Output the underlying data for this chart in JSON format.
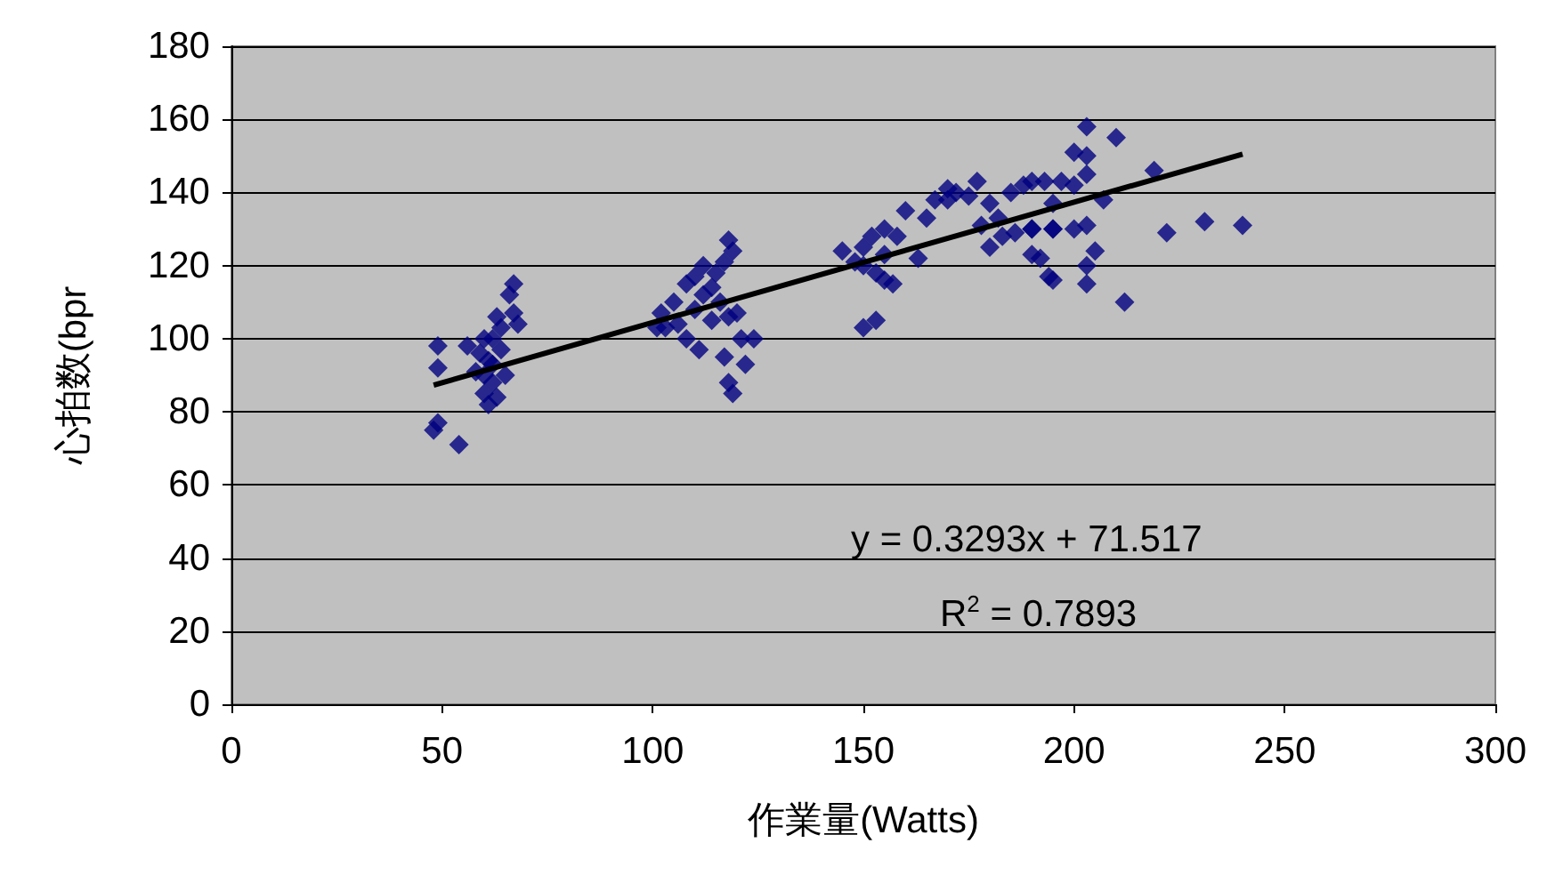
{
  "chart_data": {
    "type": "scatter",
    "xlabel": "作業量(Watts)",
    "ylabel": "心拍数(bpr",
    "xlim": [
      0,
      300
    ],
    "ylim": [
      0,
      180
    ],
    "xticks": [
      0,
      50,
      100,
      150,
      200,
      250,
      300
    ],
    "yticks": [
      0,
      20,
      40,
      60,
      80,
      100,
      120,
      140,
      160,
      180
    ],
    "grid": "y",
    "marker": "diamond",
    "annotations": [
      "y = 0.3293x + 71.517",
      "R$^{2}$ = 0.7893"
    ],
    "series": [
      {
        "color": "#000080",
        "x": [
          48,
          49,
          54,
          49,
          49,
          56,
          59,
          60,
          60,
          61,
          62,
          62,
          62,
          63,
          64,
          64,
          65,
          63,
          61,
          66,
          67,
          67,
          68,
          60,
          58,
          118,
          119,
          117,
          112,
          110,
          115,
          108,
          105,
          102,
          101,
          103,
          110,
          112,
          114,
          116,
          118,
          120,
          121,
          124,
          117,
          122,
          118,
          119,
          111,
          108,
          114,
          106,
          150,
          153,
          148,
          150,
          152,
          153,
          155,
          157,
          155,
          160,
          163,
          165,
          167,
          170,
          172,
          175,
          177,
          180,
          178,
          183,
          185,
          186,
          188,
          190,
          192,
          195,
          195,
          197,
          180,
          170,
          158,
          150,
          155,
          145,
          182,
          203,
          210,
          200,
          203,
          203,
          219,
          190,
          193,
          200,
          195,
          207,
          190,
          195,
          200,
          203,
          222,
          231,
          240,
          190,
          205,
          203,
          194,
          203,
          212
        ],
        "values": [
          75,
          77,
          71,
          92,
          98,
          98,
          96,
          90,
          85,
          82,
          88,
          93,
          100,
          106,
          103,
          97,
          90,
          84,
          94,
          112,
          115,
          107,
          104,
          100,
          91,
          127,
          124,
          121,
          120,
          117,
          118,
          115,
          110,
          107,
          103,
          103,
          108,
          112,
          114,
          110,
          106,
          107,
          100,
          100,
          95,
          93,
          88,
          85,
          97,
          100,
          105,
          104,
          103,
          105,
          121,
          125,
          128,
          118,
          116,
          115,
          130,
          135,
          122,
          133,
          138,
          141,
          140,
          139,
          143,
          137,
          131,
          128,
          140,
          129,
          142,
          130,
          122,
          116,
          130,
          143,
          125,
          138,
          128,
          120,
          123,
          124,
          133,
          158,
          155,
          151,
          150,
          145,
          146,
          143,
          143,
          142,
          137,
          138,
          130,
          130,
          130,
          131,
          129,
          132,
          131,
          123,
          124,
          120,
          117,
          115,
          110
        ]
      },
      {
        "type": "line",
        "color": "#000000",
        "marker": "none",
        "x": [
          48,
          240
        ],
        "values": [
          87.3,
          150.5
        ]
      }
    ]
  }
}
